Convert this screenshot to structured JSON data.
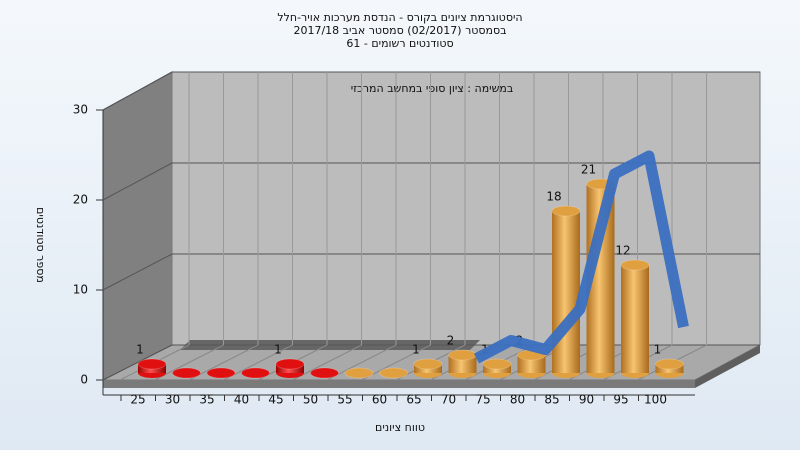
{
  "chart_data": {
    "type": "bar3d",
    "title": [
      "היסטוגרמת ציונים בקורס - הנדסת מערכות אויר-חלל",
      "בסמסטר  (02/2017)  סמסטר אביב 2017/18",
      "סטודנטים רשומים - 61"
    ],
    "annotation": "במשימה : ציון סופי במחשב המרכזי",
    "x_label": "טווח ציונים",
    "y_label": "מספר סטודנטים",
    "categories": [
      "25",
      "30",
      "35",
      "40",
      "45",
      "50",
      "55",
      "60",
      "65",
      "70",
      "75",
      "80",
      "85",
      "90",
      "95",
      "100"
    ],
    "values": [
      1,
      0,
      0,
      0,
      1,
      0,
      0,
      0,
      1,
      2,
      1,
      2,
      18,
      21,
      12,
      1
    ],
    "colors": [
      "#e01010",
      "#e01010",
      "#e01010",
      "#e01010",
      "#e01010",
      "#e01010",
      "#e0a040",
      "#e0a040",
      "#e0a040",
      "#e0a040",
      "#e0a040",
      "#e0a040",
      "#e0a040",
      "#e0a040",
      "#e0a040",
      "#e0a040"
    ],
    "curve": {
      "color": "#3a6fc0",
      "values": [
        null,
        null,
        null,
        null,
        null,
        null,
        null,
        null,
        null,
        0.5,
        2.5,
        1.5,
        6,
        21,
        23,
        4
      ]
    },
    "ylim": [
      0,
      30
    ],
    "yticks": [
      0,
      10,
      20,
      30
    ],
    "grid": true
  }
}
